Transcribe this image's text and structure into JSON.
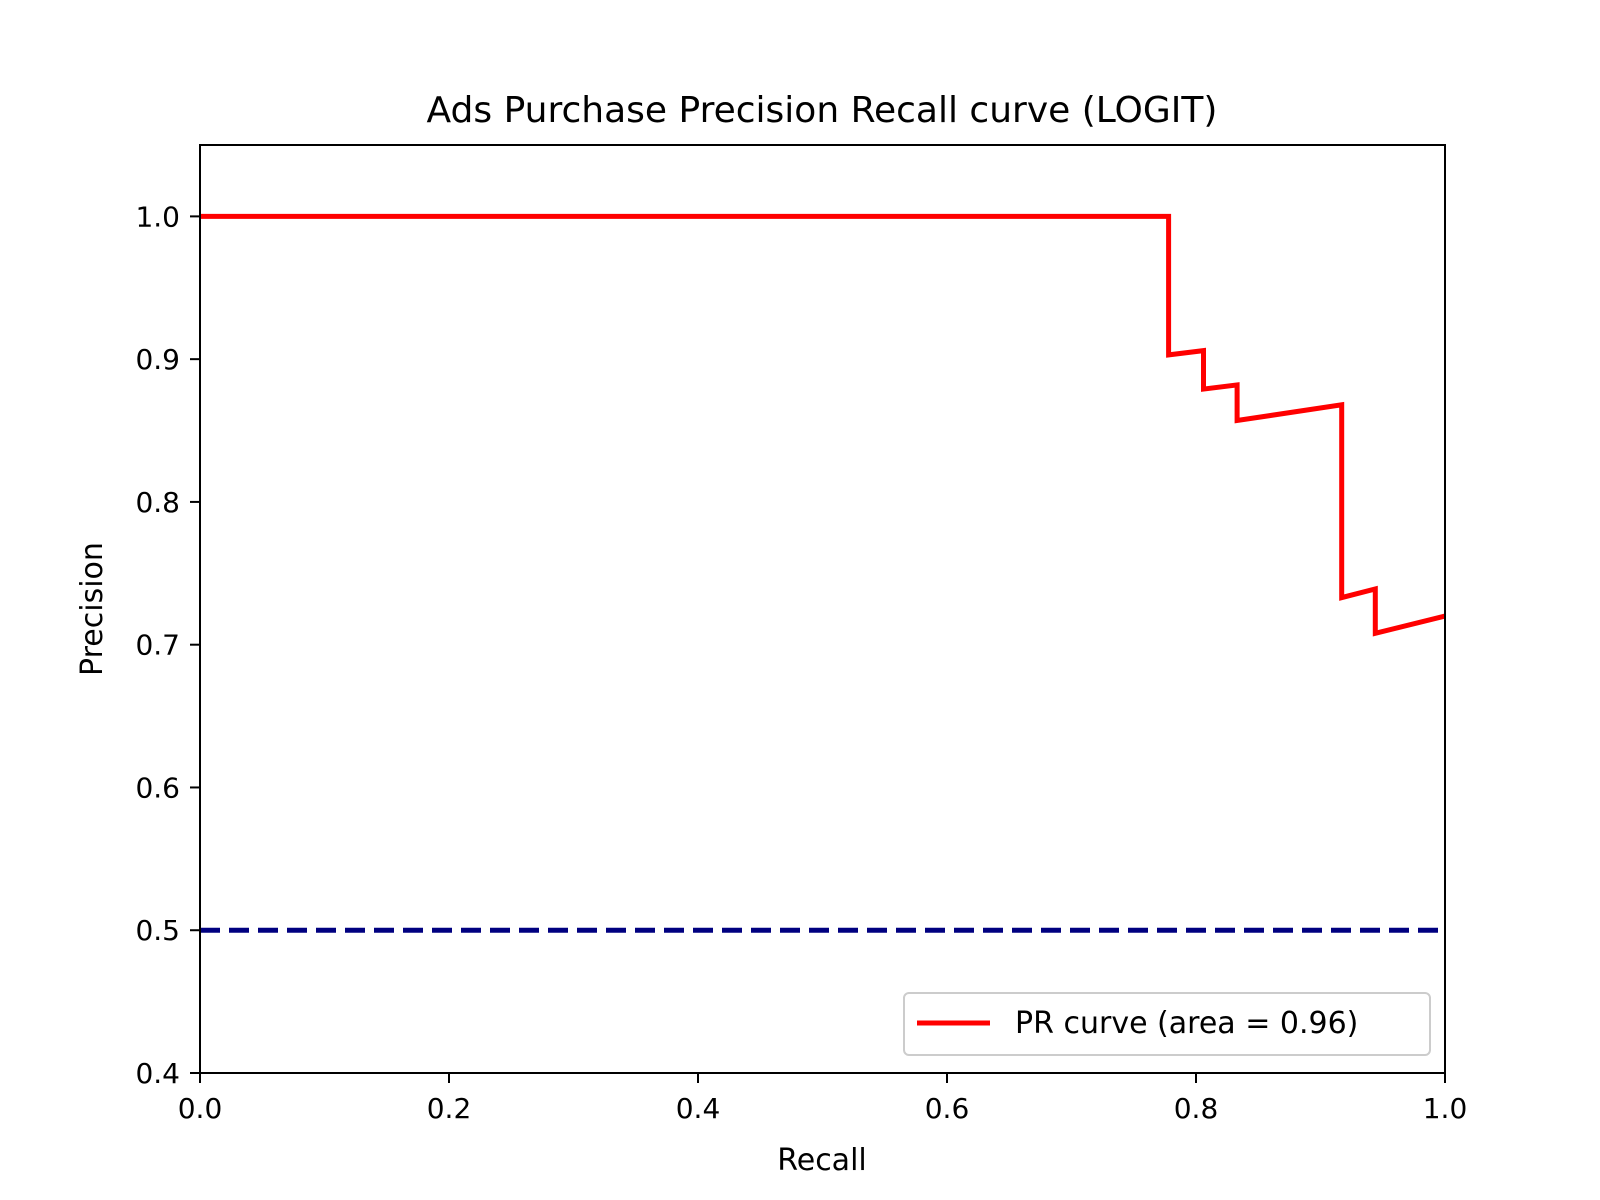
{
  "chart_data": {
    "type": "line",
    "title": "Ads Purchase Precision Recall curve (LOGIT)",
    "xlabel": "Recall",
    "ylabel": "Precision",
    "xlim": [
      0.0,
      1.0
    ],
    "ylim": [
      0.4,
      1.05
    ],
    "xticks": [
      "0.0",
      "0.2",
      "0.4",
      "0.6",
      "0.8",
      "1.0"
    ],
    "yticks": [
      "0.4",
      "0.5",
      "0.6",
      "0.7",
      "0.8",
      "0.9",
      "1.0"
    ],
    "grid": false,
    "legend_position": "lower-right",
    "series": [
      {
        "name": "PR curve (area = 0.96)",
        "color": "#ff0000",
        "style": "solid",
        "points": [
          [
            0.0,
            1.0
          ],
          [
            0.778,
            1.0
          ],
          [
            0.778,
            0.903
          ],
          [
            0.806,
            0.906
          ],
          [
            0.806,
            0.879
          ],
          [
            0.833,
            0.882
          ],
          [
            0.833,
            0.857
          ],
          [
            0.917,
            0.868
          ],
          [
            0.917,
            0.733
          ],
          [
            0.944,
            0.739
          ],
          [
            0.944,
            0.708
          ],
          [
            1.0,
            0.72
          ]
        ]
      },
      {
        "color": "#000080",
        "style": "dashed",
        "points": [
          [
            0.0,
            0.5
          ],
          [
            1.0,
            0.5
          ]
        ]
      }
    ]
  }
}
